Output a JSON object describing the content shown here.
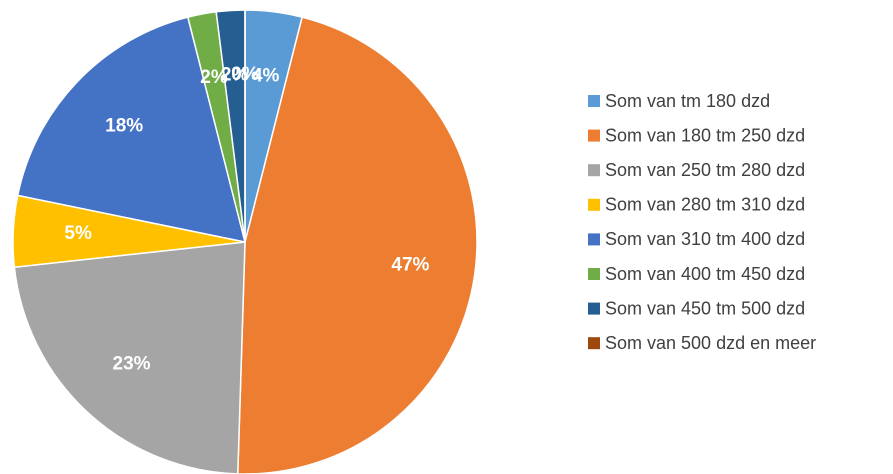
{
  "chart_data": {
    "type": "pie",
    "categories": [
      "Som van tm 180 dzd",
      "Som van 180 tm 250 dzd",
      "Som van 250 tm 280 dzd",
      "Som van 280 tm 310 dzd",
      "Som van 310 tm 400 dzd",
      "Som van 400 tm 450 dzd",
      "Som van 450 tm 500 dzd",
      "Som van 500 dzd en meer"
    ],
    "values": [
      4,
      47,
      23,
      5,
      18,
      2,
      2,
      0
    ],
    "value_labels": [
      "4%",
      "47%",
      "23%",
      "5%",
      "18%",
      "2%",
      "2%",
      "0%"
    ],
    "colors": [
      "#5b9bd5",
      "#ed7d31",
      "#a5a5a5",
      "#ffc000",
      "#4472c4",
      "#70ad47",
      "#255e91",
      "#9e480e"
    ],
    "legend": "right"
  }
}
